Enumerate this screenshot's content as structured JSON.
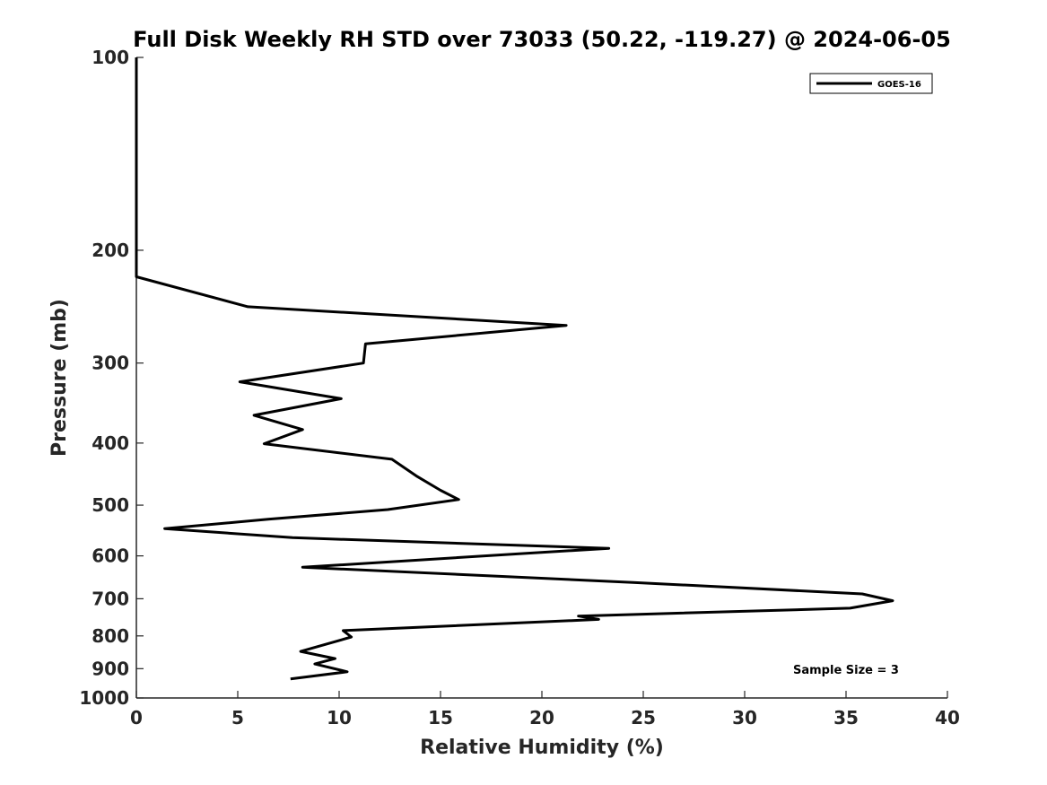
{
  "chart_data": {
    "type": "line",
    "title": "Full Disk Weekly RH STD over 73033 (50.22, -119.27) @ 2024-06-05",
    "xlabel": "Relative Humidity (%)",
    "ylabel": "Pressure (mb)",
    "xlim": [
      0,
      40
    ],
    "ylim": [
      100,
      1000
    ],
    "y_scale": "log",
    "y_reversed": true,
    "x_ticks": [
      0,
      5,
      10,
      15,
      20,
      25,
      30,
      35,
      40
    ],
    "y_ticks": [
      100,
      200,
      300,
      400,
      500,
      600,
      700,
      800,
      900,
      1000
    ],
    "grid": false,
    "legend_position": "top-right",
    "annotation": "Sample Size = 3",
    "series": [
      {
        "name": "GOES-16",
        "color": "#000000",
        "points": [
          [
            0,
            100
          ],
          [
            0,
            125
          ],
          [
            0,
            150
          ],
          [
            0,
            175
          ],
          [
            0,
            200
          ],
          [
            0,
            220
          ],
          [
            5.5,
            245
          ],
          [
            21.2,
            262
          ],
          [
            11.3,
            280
          ],
          [
            11.2,
            300
          ],
          [
            5.1,
            321
          ],
          [
            10.1,
            341
          ],
          [
            5.8,
            362
          ],
          [
            8.2,
            381
          ],
          [
            6.3,
            401
          ],
          [
            12.6,
            424
          ],
          [
            13.8,
            450
          ],
          [
            15.0,
            474
          ],
          [
            15.9,
            490
          ],
          [
            12.4,
            508
          ],
          [
            6.5,
            526
          ],
          [
            1.4,
            544
          ],
          [
            7.7,
            562
          ],
          [
            23.3,
            584
          ],
          [
            18.7,
            596
          ],
          [
            8.2,
            625
          ],
          [
            24.5,
            660
          ],
          [
            35.8,
            688
          ],
          [
            37.3,
            705
          ],
          [
            35.2,
            724
          ],
          [
            21.8,
            745
          ],
          [
            22.8,
            754
          ],
          [
            10.2,
            785
          ],
          [
            10.6,
            803
          ],
          [
            9.2,
            827
          ],
          [
            8.1,
            846
          ],
          [
            9.8,
            868
          ],
          [
            8.8,
            885
          ],
          [
            10.4,
            910
          ],
          [
            7.6,
            934
          ]
        ]
      }
    ]
  }
}
